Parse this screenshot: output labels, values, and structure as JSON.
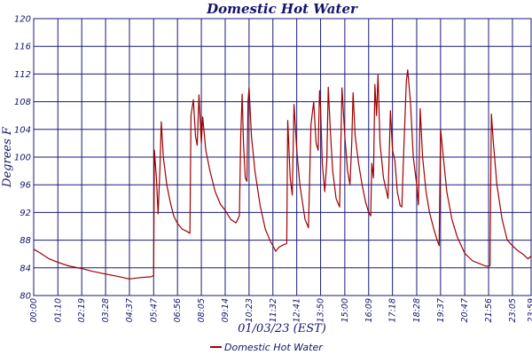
{
  "colors": {
    "grid": "#1a1a7a",
    "line": "#a00000",
    "text": "#14146e",
    "background": "#ffffff"
  },
  "chart_data": {
    "type": "line",
    "title": "Domestic Hot Water",
    "xlabel": "01/03/23 (EST)",
    "ylabel": "Degrees F",
    "xlim": [
      "00:00",
      "23:59"
    ],
    "ylim": [
      80,
      120
    ],
    "yticks": [
      80,
      84,
      88,
      92,
      96,
      100,
      104,
      108,
      112,
      116,
      120
    ],
    "ytick_labels": [
      "80",
      "84",
      "88",
      "92",
      "96",
      "100",
      "104",
      "108",
      "112",
      "116",
      "120"
    ],
    "xticks": [
      "00:00",
      "01:10",
      "02:19",
      "03:28",
      "04:37",
      "05:47",
      "06:56",
      "08:05",
      "09:14",
      "10:23",
      "11:32",
      "12:41",
      "13:50",
      "15:00",
      "16:09",
      "17:18",
      "18:28",
      "19:37",
      "20:47",
      "21:56",
      "23:05",
      "23:59"
    ],
    "grid": true,
    "legend_position": "bottom",
    "series": [
      {
        "name": "Domestic Hot Water",
        "color": "#a00000",
        "points": [
          [
            "00:00",
            86.7
          ],
          [
            "00:20",
            86.1
          ],
          [
            "00:45",
            85.3
          ],
          [
            "01:10",
            84.8
          ],
          [
            "01:40",
            84.3
          ],
          [
            "02:19",
            83.9
          ],
          [
            "02:50",
            83.5
          ],
          [
            "03:28",
            83.1
          ],
          [
            "04:00",
            82.8
          ],
          [
            "04:37",
            82.4
          ],
          [
            "05:10",
            82.6
          ],
          [
            "05:40",
            82.7
          ],
          [
            "05:47",
            82.9
          ],
          [
            "05:49",
            101.0
          ],
          [
            "05:55",
            97.0
          ],
          [
            "06:00",
            91.8
          ],
          [
            "06:05",
            98.0
          ],
          [
            "06:09",
            105.1
          ],
          [
            "06:15",
            100.0
          ],
          [
            "06:25",
            96.0
          ],
          [
            "06:35",
            93.5
          ],
          [
            "06:45",
            91.5
          ],
          [
            "06:56",
            90.4
          ],
          [
            "07:10",
            89.6
          ],
          [
            "07:25",
            89.2
          ],
          [
            "07:32",
            89.0
          ],
          [
            "07:35",
            106.0
          ],
          [
            "07:42",
            108.3
          ],
          [
            "07:48",
            103.0
          ],
          [
            "07:53",
            101.7
          ],
          [
            "07:58",
            109.0
          ],
          [
            "08:03",
            104.0
          ],
          [
            "08:05",
            102.0
          ],
          [
            "08:09",
            105.8
          ],
          [
            "08:18",
            101.0
          ],
          [
            "08:30",
            98.0
          ],
          [
            "08:45",
            95.0
          ],
          [
            "09:00",
            93.2
          ],
          [
            "09:14",
            92.3
          ],
          [
            "09:30",
            91.0
          ],
          [
            "09:45",
            90.5
          ],
          [
            "09:55",
            91.5
          ],
          [
            "09:59",
            103.0
          ],
          [
            "10:03",
            109.1
          ],
          [
            "10:07",
            102.0
          ],
          [
            "10:12",
            97.0
          ],
          [
            "10:17",
            96.5
          ],
          [
            "10:20",
            108.0
          ],
          [
            "10:23",
            110.0
          ],
          [
            "10:30",
            103.0
          ],
          [
            "10:40",
            98.0
          ],
          [
            "10:55",
            93.0
          ],
          [
            "11:10",
            89.6
          ],
          [
            "11:25",
            87.8
          ],
          [
            "11:32",
            87.2
          ],
          [
            "11:40",
            86.4
          ],
          [
            "11:50",
            87.0
          ],
          [
            "12:05",
            87.4
          ],
          [
            "12:12",
            87.5
          ],
          [
            "12:15",
            105.3
          ],
          [
            "12:22",
            97.0
          ],
          [
            "12:28",
            94.5
          ],
          [
            "12:33",
            107.6
          ],
          [
            "12:41",
            101.0
          ],
          [
            "12:50",
            96.0
          ],
          [
            "13:05",
            91.0
          ],
          [
            "13:15",
            89.8
          ],
          [
            "13:22",
            104.7
          ],
          [
            "13:30",
            108.0
          ],
          [
            "13:37",
            102.0
          ],
          [
            "13:43",
            101.0
          ],
          [
            "13:47",
            109.6
          ],
          [
            "13:50",
            107.0
          ],
          [
            "13:55",
            99.0
          ],
          [
            "14:02",
            95.0
          ],
          [
            "14:08",
            99.5
          ],
          [
            "14:12",
            110.1
          ],
          [
            "14:18",
            104.0
          ],
          [
            "14:25",
            98.0
          ],
          [
            "14:35",
            94.0
          ],
          [
            "14:45",
            92.8
          ],
          [
            "14:52",
            110.0
          ],
          [
            "15:00",
            103.0
          ],
          [
            "15:08",
            98.0
          ],
          [
            "15:15",
            96.0
          ],
          [
            "15:20",
            102.0
          ],
          [
            "15:24",
            109.3
          ],
          [
            "15:30",
            103.0
          ],
          [
            "15:40",
            99.0
          ],
          [
            "15:50",
            96.0
          ],
          [
            "16:00",
            93.5
          ],
          [
            "16:09",
            92.0
          ],
          [
            "16:15",
            91.5
          ],
          [
            "16:18",
            99.1
          ],
          [
            "16:23",
            97.0
          ],
          [
            "16:27",
            110.5
          ],
          [
            "16:32",
            106.0
          ],
          [
            "16:36",
            111.9
          ],
          [
            "16:42",
            102.0
          ],
          [
            "16:52",
            97.0
          ],
          [
            "17:05",
            94.0
          ],
          [
            "17:12",
            106.7
          ],
          [
            "17:18",
            101.0
          ],
          [
            "17:25",
            99.5
          ],
          [
            "17:32",
            95.0
          ],
          [
            "17:40",
            93.0
          ],
          [
            "17:45",
            92.8
          ],
          [
            "17:50",
            100.0
          ],
          [
            "17:58",
            111.0
          ],
          [
            "18:02",
            112.6
          ],
          [
            "18:10",
            108.0
          ],
          [
            "18:18",
            100.0
          ],
          [
            "18:28",
            96.0
          ],
          [
            "18:33",
            93.1
          ],
          [
            "18:38",
            107.0
          ],
          [
            "18:45",
            100.0
          ],
          [
            "18:55",
            95.0
          ],
          [
            "19:05",
            92.0
          ],
          [
            "19:18",
            89.5
          ],
          [
            "19:28",
            87.9
          ],
          [
            "19:33",
            87.2
          ],
          [
            "19:37",
            104.0
          ],
          [
            "19:45",
            100.0
          ],
          [
            "19:55",
            95.0
          ],
          [
            "20:10",
            91.0
          ],
          [
            "20:25",
            88.5
          ],
          [
            "20:47",
            86.1
          ],
          [
            "21:10",
            85.0
          ],
          [
            "21:30",
            84.6
          ],
          [
            "21:45",
            84.3
          ],
          [
            "21:56",
            84.2
          ],
          [
            "22:00",
            84.3
          ],
          [
            "22:04",
            106.2
          ],
          [
            "22:10",
            102.0
          ],
          [
            "22:20",
            96.0
          ],
          [
            "22:35",
            91.0
          ],
          [
            "22:50",
            88.0
          ],
          [
            "23:05",
            87.2
          ],
          [
            "23:20",
            86.5
          ],
          [
            "23:35",
            86.0
          ],
          [
            "23:50",
            85.3
          ],
          [
            "23:59",
            85.7
          ]
        ]
      }
    ]
  }
}
